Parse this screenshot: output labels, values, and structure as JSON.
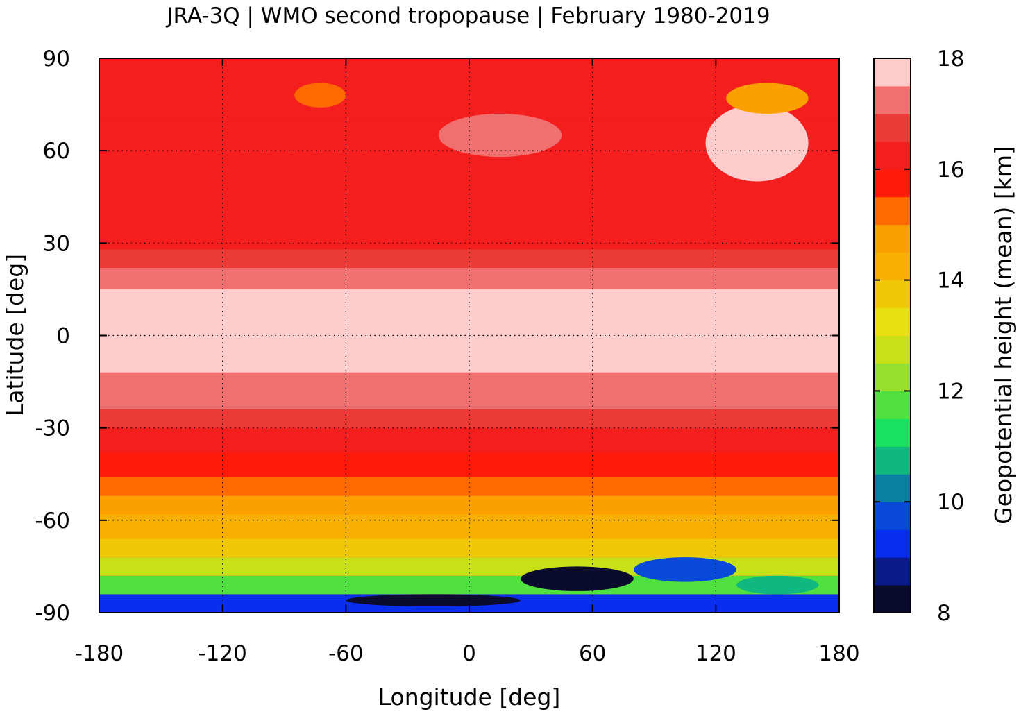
{
  "chart_data": {
    "type": "heatmap",
    "title": "JRA-3Q | WMO second tropopause | February 1980-2019",
    "xlabel": "Longitude [deg]",
    "ylabel": "Latitude [deg]",
    "colorbar_label": "Geopotential height (mean) [km]",
    "xlim": [
      -180,
      180
    ],
    "ylim": [
      -90,
      90
    ],
    "xticks": [
      -180,
      -120,
      -60,
      0,
      60,
      120,
      180
    ],
    "yticks": [
      -90,
      -60,
      -30,
      0,
      30,
      60,
      90
    ],
    "colorbar_range": [
      8,
      18
    ],
    "colorbar_ticks": [
      8,
      10,
      12,
      14,
      16,
      18
    ],
    "grid": true,
    "colorbar_levels": [
      "#0b0b2e",
      "#0a1a8a",
      "#0a2ef0",
      "#0a4ad8",
      "#0c80a0",
      "#10b880",
      "#18e060",
      "#50e040",
      "#98e030",
      "#c8e018",
      "#e8e010",
      "#f0c808",
      "#f8b000",
      "#fca000",
      "#ff6a00",
      "#ff1a0a",
      "#f41e1e",
      "#ec3a36",
      "#f07070",
      "#ffcccc"
    ],
    "zonal_bands": [
      {
        "lat": [
          -90,
          -84
        ],
        "value": 9.2
      },
      {
        "lat": [
          -84,
          -78
        ],
        "value": 11.5
      },
      {
        "lat": [
          -78,
          -72
        ],
        "value": 12.8
      },
      {
        "lat": [
          -72,
          -66
        ],
        "value": 13.6
      },
      {
        "lat": [
          -66,
          -58
        ],
        "value": 14.3
      },
      {
        "lat": [
          -58,
          -52
        ],
        "value": 14.9
      },
      {
        "lat": [
          -52,
          -46
        ],
        "value": 15.3
      },
      {
        "lat": [
          -46,
          -38
        ],
        "value": 15.8
      },
      {
        "lat": [
          -38,
          -30
        ],
        "value": 16.3
      },
      {
        "lat": [
          -30,
          -24
        ],
        "value": 16.7
      },
      {
        "lat": [
          -24,
          -12
        ],
        "value": 17.2
      },
      {
        "lat": [
          -12,
          15
        ],
        "value": 17.7
      },
      {
        "lat": [
          15,
          22
        ],
        "value": 17.2
      },
      {
        "lat": [
          22,
          28
        ],
        "value": 16.8
      },
      {
        "lat": [
          28,
          40
        ],
        "value": 16.3
      },
      {
        "lat": [
          40,
          62
        ],
        "value": 16.0
      },
      {
        "lat": [
          62,
          70
        ],
        "value": 16.3
      },
      {
        "lat": [
          70,
          84
        ],
        "value": 16.0
      },
      {
        "lat": [
          84,
          90
        ],
        "value": 16.2
      }
    ],
    "regional_features": [
      {
        "lon": [
          -15,
          45
        ],
        "lat": [
          58,
          72
        ],
        "value": 17.0
      },
      {
        "lon": [
          115,
          165
        ],
        "lat": [
          50,
          75
        ],
        "value": 17.5
      },
      {
        "lon": [
          125,
          165
        ],
        "lat": [
          72,
          82
        ],
        "value": 14.5
      },
      {
        "lon": [
          -85,
          -60
        ],
        "lat": [
          74,
          82
        ],
        "value": 15.2
      },
      {
        "lon": [
          25,
          80
        ],
        "lat": [
          -83,
          -75
        ],
        "value": 8.4
      },
      {
        "lon": [
          80,
          130
        ],
        "lat": [
          -80,
          -72
        ],
        "value": 9.6
      },
      {
        "lon": [
          130,
          170
        ],
        "lat": [
          -84,
          -78
        ],
        "value": 10.5
      },
      {
        "lon": [
          -60,
          25
        ],
        "lat": [
          -88,
          -84
        ],
        "value": 8.4
      }
    ]
  }
}
